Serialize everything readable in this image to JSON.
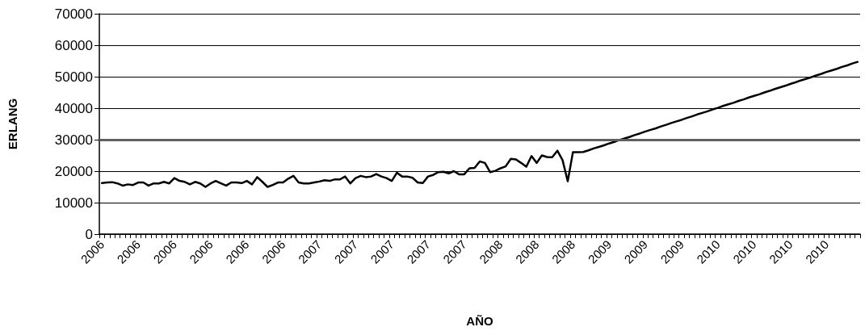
{
  "chart_data": {
    "type": "line",
    "xlabel": "AÑO",
    "ylabel": "ERLANG",
    "categories": [
      "2006",
      null,
      null,
      null,
      null,
      null,
      null,
      "2006",
      null,
      null,
      null,
      null,
      null,
      null,
      "2006",
      null,
      null,
      null,
      null,
      null,
      null,
      "2006",
      null,
      null,
      null,
      null,
      null,
      null,
      "2006",
      null,
      null,
      null,
      null,
      null,
      null,
      "2006",
      null,
      null,
      null,
      null,
      null,
      null,
      "2007",
      null,
      null,
      null,
      null,
      null,
      null,
      "2007",
      null,
      null,
      null,
      null,
      null,
      null,
      "2007",
      null,
      null,
      null,
      null,
      null,
      null,
      "2007",
      null,
      null,
      null,
      null,
      null,
      null,
      "2007",
      null,
      null,
      null,
      null,
      null,
      null,
      "2008",
      null,
      null,
      null,
      null,
      null,
      null,
      "2008",
      null,
      null,
      null,
      null,
      null,
      null,
      "2008",
      null,
      null,
      null,
      null,
      null,
      null,
      "2009",
      null,
      null,
      null,
      null,
      null,
      null,
      "2009",
      null,
      null,
      null,
      null,
      null,
      null,
      "2009",
      null,
      null,
      null,
      null,
      null,
      null,
      "2010",
      null,
      null,
      null,
      null,
      null,
      null,
      "2010",
      null,
      null,
      null,
      null,
      null,
      null,
      "2010",
      null,
      null,
      null,
      null,
      null,
      null,
      "2010",
      null,
      null,
      null,
      null,
      null,
      null
    ],
    "series": [
      {
        "color": "#000000",
        "values": [
          16200,
          16400,
          16500,
          16100,
          15400,
          15800,
          15600,
          16400,
          16400,
          15400,
          16100,
          16100,
          16600,
          16100,
          17800,
          16900,
          16600,
          15800,
          16600,
          16100,
          15000,
          16100,
          16900,
          16100,
          15400,
          16400,
          16400,
          16200,
          16900,
          15800,
          18100,
          16600,
          15000,
          15600,
          16400,
          16400,
          17600,
          18500,
          16400,
          16100,
          16100,
          16400,
          16700,
          17100,
          16900,
          17400,
          17400,
          18300,
          16100,
          17800,
          18500,
          18100,
          18300,
          19100,
          18300,
          17800,
          16900,
          19500,
          18300,
          18300,
          17900,
          16400,
          16200,
          18300,
          18800,
          19700,
          19800,
          19300,
          20000,
          19000,
          19000,
          20900,
          21000,
          23100,
          22600,
          19700,
          20100,
          20900,
          21500,
          23900,
          23700,
          22600,
          21400,
          24800,
          22600,
          25000,
          24500,
          24400,
          26500,
          23500,
          16800,
          26000,
          26000,
          26100,
          26600,
          27200,
          27700,
          28200,
          28800,
          29300,
          29900,
          30400,
          30900,
          31500,
          32000,
          32600,
          33100,
          33600,
          34200,
          34700,
          35300,
          35800,
          36300,
          36900,
          37400,
          38000,
          38500,
          39000,
          39600,
          40100,
          40700,
          41200,
          41700,
          42300,
          42800,
          43400,
          43900,
          44400,
          45000,
          45500,
          46100,
          46600,
          47100,
          47700,
          48200,
          48800,
          49300,
          49800,
          50400,
          50900,
          51500,
          52000,
          52500,
          53100,
          53600,
          54200,
          54700
        ]
      }
    ],
    "ylim": [
      0,
      70000
    ],
    "yticks": [
      0,
      10000,
      20000,
      30000,
      40000,
      50000,
      60000,
      70000
    ],
    "grid": "y",
    "marker": "none",
    "line_style": "solid",
    "ref_lines": [
      {
        "axis": "y",
        "value": 30000,
        "color": "#606060"
      }
    ]
  }
}
